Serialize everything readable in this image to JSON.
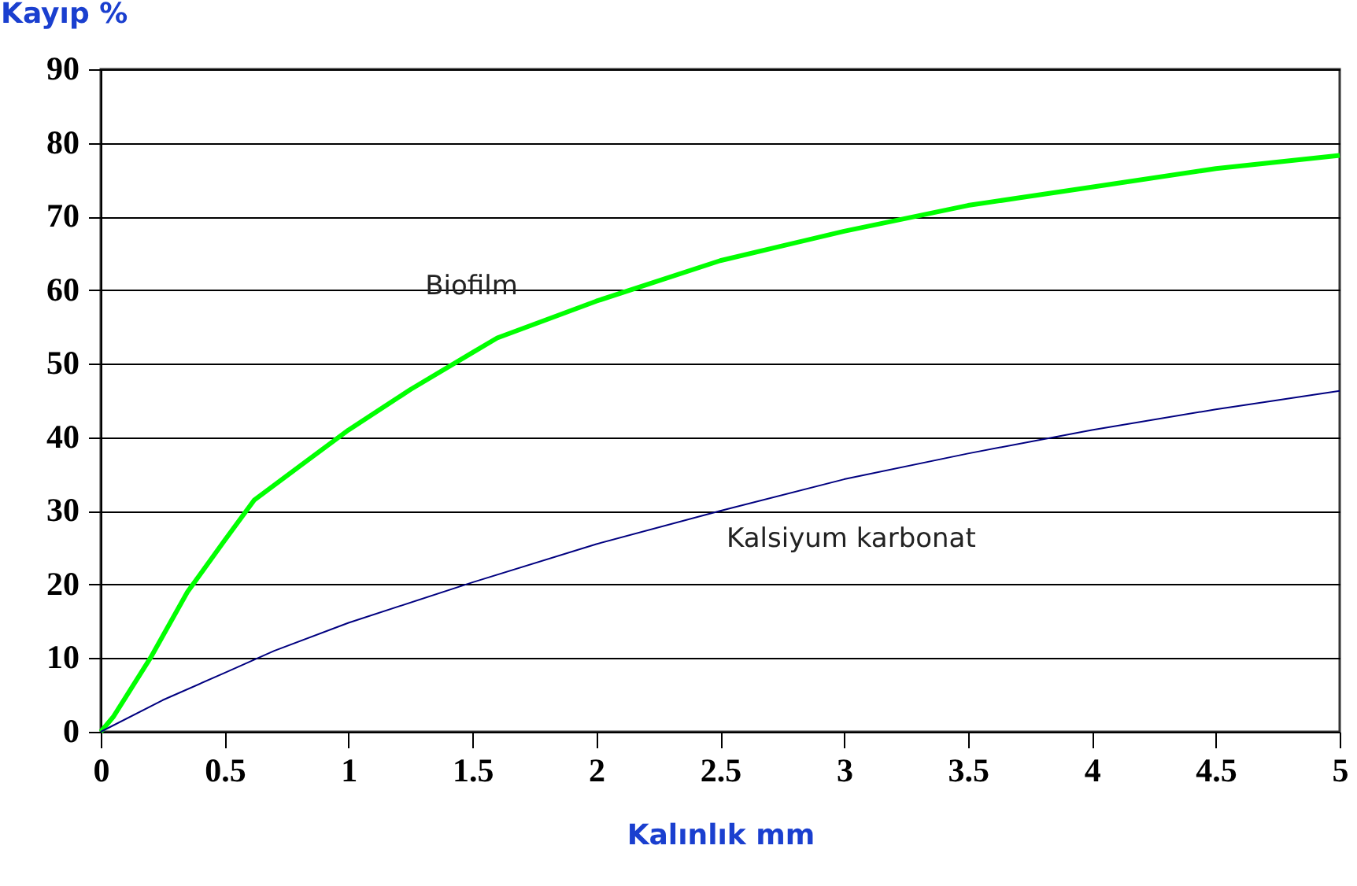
{
  "chart_data": {
    "type": "line",
    "xlabel": "Kalınlık mm",
    "ylabel": "Kayıp %",
    "xlim": [
      0,
      5
    ],
    "xticks": [
      0,
      0.5,
      1,
      1.5,
      2,
      2.5,
      3,
      3.5,
      4,
      4.5,
      5
    ],
    "ylim": [
      0,
      90
    ],
    "yticks": [
      0,
      10,
      20,
      30,
      40,
      50,
      60,
      70,
      80,
      90
    ],
    "grid": "y",
    "legend": false,
    "marker": "none",
    "line_style": "solid",
    "series": [
      {
        "name": "Biofilm",
        "color": "#00ff00",
        "x": [
          0,
          0.05,
          0.2,
          0.35,
          0.5,
          0.62,
          0.8,
          1,
          1.25,
          1.5,
          1.6,
          2,
          2.5,
          3,
          3.5,
          4,
          4.5,
          5
        ],
        "values": [
          0,
          2,
          10,
          19,
          26,
          31.5,
          36,
          41,
          46.5,
          51.5,
          53.5,
          58.5,
          64,
          68,
          71.5,
          74,
          76.5,
          78.3
        ]
      },
      {
        "name": "Kalsiyum karbonat",
        "color": "#000080",
        "x": [
          0,
          0.25,
          0.5,
          0.7,
          1,
          1.5,
          2,
          2.5,
          3,
          3.5,
          4,
          4.5,
          5
        ],
        "values": [
          0,
          4.3,
          8,
          11,
          14.8,
          20.3,
          25.5,
          30,
          34.3,
          37.8,
          41,
          43.8,
          46.3
        ]
      }
    ]
  }
}
